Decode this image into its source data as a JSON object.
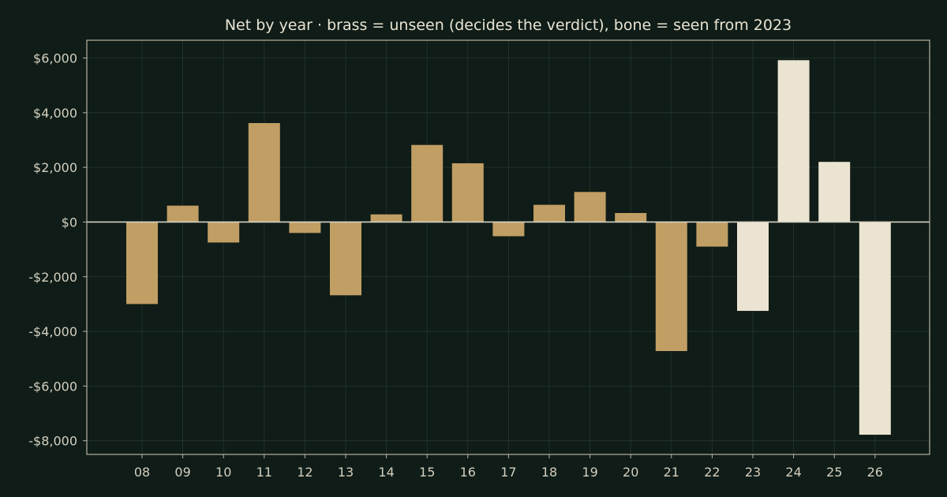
{
  "chart_data": {
    "type": "bar",
    "title": "Net by year  ·  brass = unseen (decides the verdict), bone = seen from 2023",
    "xlabel": "",
    "ylabel": "",
    "ylim": [
      -8500,
      6650
    ],
    "yticks": [
      6000,
      4000,
      2000,
      0,
      -2000,
      -4000,
      -6000,
      -8000
    ],
    "ytick_labels": [
      "$6,000",
      "$4,000",
      "$2,000",
      "$0",
      "-$2,000",
      "-$4,000",
      "-$6,000",
      "-$8,000"
    ],
    "grid": true,
    "categories": [
      "08",
      "09",
      "10",
      "11",
      "12",
      "13",
      "14",
      "15",
      "16",
      "17",
      "18",
      "19",
      "20",
      "21",
      "22",
      "23",
      "24",
      "25",
      "26"
    ],
    "values": [
      -3000,
      600,
      -750,
      3620,
      -400,
      -2680,
      280,
      2820,
      2150,
      -520,
      630,
      1100,
      330,
      -4720,
      -900,
      -3250,
      5920,
      2200,
      -7780
    ],
    "groups": [
      "unseen",
      "unseen",
      "unseen",
      "unseen",
      "unseen",
      "unseen",
      "unseen",
      "unseen",
      "unseen",
      "unseen",
      "unseen",
      "unseen",
      "unseen",
      "unseen",
      "unseen",
      "seen",
      "seen",
      "seen",
      "seen"
    ],
    "colors": {
      "unseen": "#c09e64",
      "seen": "#ece4d2"
    }
  }
}
